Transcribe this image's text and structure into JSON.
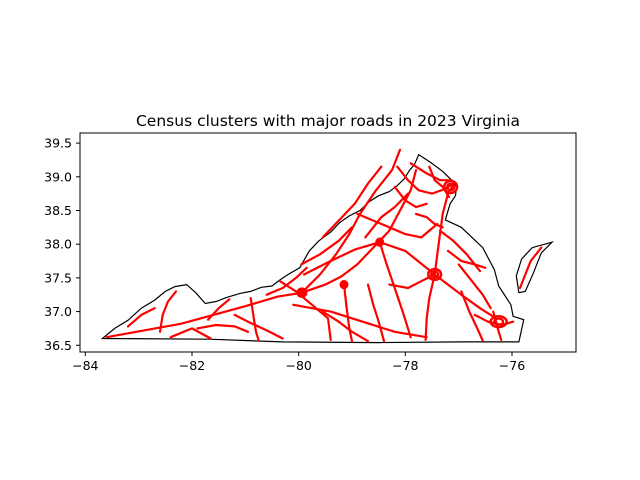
{
  "title": "Census clusters with major roads in 2023 Virginia",
  "colors": {
    "roads": "#ff0000",
    "boundary": "#000000",
    "background": "#ffffff"
  },
  "chart_data": {
    "type": "map",
    "title": "Census clusters with major roads in 2023 Virginia",
    "xlim": [
      -84.1,
      -74.8
    ],
    "ylim": [
      36.4,
      39.65
    ],
    "x_ticks": [
      -84,
      -82,
      -80,
      -78,
      -76
    ],
    "x_tick_labels": [
      "−84",
      "−82",
      "−80",
      "−78",
      "−76"
    ],
    "y_ticks": [
      36.5,
      37.0,
      37.5,
      38.0,
      38.5,
      39.0,
      39.5
    ],
    "y_tick_labels": [
      "36.5",
      "37.0",
      "37.5",
      "38.0",
      "38.5",
      "39.0",
      "39.5"
    ],
    "grid": false,
    "layers": [
      {
        "name": "state boundary",
        "color": "#000000"
      },
      {
        "name": "major roads",
        "color": "#ff0000"
      }
    ],
    "boundary": [
      [
        -83.68,
        36.6
      ],
      [
        -81.68,
        36.59
      ],
      [
        -80.3,
        36.55
      ],
      [
        -78.5,
        36.54
      ],
      [
        -76.92,
        36.55
      ],
      [
        -75.87,
        36.55
      ],
      [
        -75.78,
        36.88
      ],
      [
        -75.98,
        36.93
      ],
      [
        -76.02,
        37.1
      ],
      [
        -76.25,
        37.38
      ],
      [
        -76.33,
        37.62
      ],
      [
        -76.55,
        37.95
      ],
      [
        -76.95,
        38.25
      ],
      [
        -77.25,
        38.36
      ],
      [
        -77.16,
        38.6
      ],
      [
        -77.06,
        38.72
      ],
      [
        -77.04,
        38.85
      ],
      [
        -77.12,
        38.94
      ],
      [
        -77.3,
        39.08
      ],
      [
        -77.52,
        39.21
      ],
      [
        -77.75,
        39.33
      ],
      [
        -77.83,
        39.18
      ],
      [
        -77.92,
        39.1
      ],
      [
        -78.02,
        38.97
      ],
      [
        -78.15,
        38.87
      ],
      [
        -78.3,
        38.78
      ],
      [
        -78.5,
        38.72
      ],
      [
        -78.68,
        38.63
      ],
      [
        -78.85,
        38.5
      ],
      [
        -79.05,
        38.42
      ],
      [
        -79.23,
        38.32
      ],
      [
        -79.4,
        38.18
      ],
      [
        -79.62,
        38.05
      ],
      [
        -79.8,
        37.9
      ],
      [
        -79.98,
        37.65
      ],
      [
        -80.2,
        37.55
      ],
      [
        -80.35,
        37.47
      ],
      [
        -80.5,
        37.38
      ],
      [
        -80.7,
        37.36
      ],
      [
        -80.9,
        37.3
      ],
      [
        -81.1,
        37.27
      ],
      [
        -81.35,
        37.21
      ],
      [
        -81.55,
        37.15
      ],
      [
        -81.75,
        37.12
      ],
      [
        -81.93,
        37.28
      ],
      [
        -82.1,
        37.4
      ],
      [
        -82.32,
        37.37
      ],
      [
        -82.5,
        37.3
      ],
      [
        -82.7,
        37.17
      ],
      [
        -82.95,
        37.05
      ],
      [
        -83.2,
        36.87
      ],
      [
        -83.45,
        36.75
      ],
      [
        -83.68,
        36.6
      ]
    ],
    "peninsula": [
      [
        -75.87,
        37.28
      ],
      [
        -75.92,
        37.53
      ],
      [
        -75.82,
        37.78
      ],
      [
        -75.62,
        37.95
      ],
      [
        -75.25,
        38.03
      ],
      [
        -75.45,
        37.87
      ],
      [
        -75.6,
        37.57
      ],
      [
        -75.75,
        37.3
      ],
      [
        -75.87,
        37.28
      ]
    ],
    "road_segments": [
      [
        [
          -83.6,
          36.62
        ],
        [
          -82.9,
          36.72
        ],
        [
          -82.2,
          36.82
        ],
        [
          -81.6,
          36.95
        ],
        [
          -81.0,
          37.08
        ],
        [
          -80.4,
          37.22
        ]
      ],
      [
        [
          -80.4,
          37.22
        ],
        [
          -79.94,
          37.28
        ],
        [
          -79.5,
          37.4
        ],
        [
          -79.2,
          37.52
        ],
        [
          -78.9,
          37.7
        ],
        [
          -78.6,
          37.95
        ],
        [
          -78.3,
          38.2
        ],
        [
          -78.1,
          38.5
        ],
        [
          -77.9,
          38.8
        ],
        [
          -77.8,
          39.1
        ]
      ],
      [
        [
          -79.94,
          37.28
        ],
        [
          -79.6,
          37.55
        ],
        [
          -79.3,
          37.85
        ],
        [
          -79.05,
          38.15
        ],
        [
          -78.85,
          38.45
        ],
        [
          -78.55,
          38.8
        ],
        [
          -78.25,
          39.1
        ],
        [
          -78.1,
          39.4
        ]
      ],
      [
        [
          -80.1,
          37.1
        ],
        [
          -79.4,
          37.0
        ],
        [
          -78.8,
          36.85
        ],
        [
          -78.2,
          36.7
        ],
        [
          -77.6,
          36.62
        ]
      ],
      [
        [
          -79.9,
          37.55
        ],
        [
          -79.4,
          37.75
        ],
        [
          -78.95,
          37.92
        ],
        [
          -78.48,
          38.03
        ],
        [
          -78.0,
          37.9
        ],
        [
          -77.45,
          37.55
        ]
      ],
      [
        [
          -77.45,
          37.55
        ],
        [
          -77.2,
          37.4
        ],
        [
          -76.9,
          37.22
        ],
        [
          -76.6,
          37.05
        ],
        [
          -76.3,
          36.9
        ]
      ],
      [
        [
          -77.45,
          37.55
        ],
        [
          -77.4,
          37.85
        ],
        [
          -77.35,
          38.15
        ],
        [
          -77.3,
          38.45
        ],
        [
          -77.2,
          38.75
        ],
        [
          -77.1,
          38.88
        ]
      ],
      [
        [
          -77.45,
          37.55
        ],
        [
          -77.55,
          37.2
        ],
        [
          -77.6,
          36.9
        ],
        [
          -77.62,
          36.58
        ]
      ],
      [
        [
          -78.48,
          38.03
        ],
        [
          -78.35,
          37.7
        ],
        [
          -78.2,
          37.35
        ],
        [
          -78.05,
          37.0
        ],
        [
          -77.9,
          36.62
        ]
      ],
      [
        [
          -79.15,
          37.4
        ],
        [
          -79.1,
          37.05
        ],
        [
          -79.05,
          36.75
        ],
        [
          -79.0,
          36.56
        ]
      ],
      [
        [
          -80.9,
          37.2
        ],
        [
          -80.85,
          36.95
        ],
        [
          -80.8,
          36.7
        ],
        [
          -80.75,
          36.57
        ]
      ],
      [
        [
          -81.7,
          36.88
        ],
        [
          -81.5,
          37.05
        ],
        [
          -81.3,
          37.18
        ]
      ],
      [
        [
          -82.6,
          36.7
        ],
        [
          -82.55,
          36.95
        ],
        [
          -82.45,
          37.15
        ],
        [
          -82.3,
          37.3
        ]
      ],
      [
        [
          -83.2,
          36.78
        ],
        [
          -82.95,
          36.95
        ],
        [
          -82.7,
          37.05
        ]
      ],
      [
        [
          -82.4,
          36.62
        ],
        [
          -82.0,
          36.75
        ],
        [
          -81.65,
          36.6
        ]
      ],
      [
        [
          -81.2,
          36.95
        ],
        [
          -80.95,
          36.85
        ],
        [
          -80.6,
          36.72
        ],
        [
          -80.3,
          36.6
        ]
      ],
      [
        [
          -80.35,
          37.45
        ],
        [
          -80.05,
          37.3
        ],
        [
          -79.75,
          37.1
        ],
        [
          -79.45,
          36.9
        ],
        [
          -79.4,
          36.58
        ]
      ],
      [
        [
          -79.95,
          37.7
        ],
        [
          -79.6,
          37.85
        ],
        [
          -79.25,
          38.05
        ],
        [
          -79.0,
          38.25
        ]
      ],
      [
        [
          -79.55,
          38.1
        ],
        [
          -79.25,
          38.35
        ],
        [
          -78.95,
          38.6
        ],
        [
          -78.7,
          38.9
        ],
        [
          -78.45,
          39.15
        ]
      ],
      [
        [
          -78.9,
          38.45
        ],
        [
          -78.6,
          38.35
        ],
        [
          -78.3,
          38.25
        ],
        [
          -78.0,
          38.15
        ],
        [
          -77.7,
          38.1
        ],
        [
          -77.4,
          38.3
        ]
      ],
      [
        [
          -78.15,
          39.15
        ],
        [
          -77.95,
          38.95
        ],
        [
          -77.75,
          38.8
        ],
        [
          -77.5,
          38.75
        ],
        [
          -77.25,
          38.82
        ],
        [
          -77.1,
          38.9
        ]
      ],
      [
        [
          -77.55,
          39.15
        ],
        [
          -77.45,
          38.95
        ],
        [
          -77.3,
          38.85
        ],
        [
          -77.18,
          38.7
        ]
      ],
      [
        [
          -77.9,
          39.2
        ],
        [
          -77.6,
          39.05
        ],
        [
          -77.35,
          38.95
        ],
        [
          -77.15,
          38.95
        ]
      ],
      [
        [
          -77.8,
          38.45
        ],
        [
          -77.6,
          38.4
        ],
        [
          -77.45,
          38.3
        ],
        [
          -77.3,
          38.25
        ]
      ],
      [
        [
          -77.35,
          38.2
        ],
        [
          -77.1,
          38.05
        ],
        [
          -76.85,
          37.85
        ],
        [
          -76.6,
          37.6
        ]
      ],
      [
        [
          -77.0,
          37.7
        ],
        [
          -76.75,
          37.45
        ],
        [
          -76.55,
          37.25
        ],
        [
          -76.4,
          37.05
        ]
      ],
      [
        [
          -76.95,
          37.3
        ],
        [
          -76.8,
          37.0
        ],
        [
          -76.65,
          36.75
        ],
        [
          -76.55,
          36.57
        ]
      ],
      [
        [
          -76.7,
          36.95
        ],
        [
          -76.45,
          36.85
        ],
        [
          -76.2,
          36.8
        ],
        [
          -75.98,
          36.85
        ]
      ],
      [
        [
          -76.35,
          37.0
        ],
        [
          -76.3,
          36.85
        ],
        [
          -76.25,
          36.7
        ],
        [
          -76.2,
          36.58
        ]
      ],
      [
        [
          -75.85,
          37.35
        ],
        [
          -75.75,
          37.55
        ],
        [
          -75.65,
          37.75
        ],
        [
          -75.45,
          37.95
        ]
      ],
      [
        [
          -78.3,
          37.4
        ],
        [
          -77.95,
          37.35
        ],
        [
          -77.7,
          37.45
        ],
        [
          -77.45,
          37.55
        ]
      ],
      [
        [
          -78.7,
          37.4
        ],
        [
          -78.6,
          37.1
        ],
        [
          -78.5,
          36.85
        ],
        [
          -78.4,
          36.56
        ]
      ],
      [
        [
          -79.55,
          37.0
        ],
        [
          -79.25,
          36.85
        ],
        [
          -79.0,
          36.7
        ],
        [
          -78.7,
          36.56
        ]
      ],
      [
        [
          -78.2,
          38.85
        ],
        [
          -78.0,
          38.65
        ],
        [
          -77.8,
          38.55
        ],
        [
          -77.6,
          38.6
        ]
      ],
      [
        [
          -78.75,
          38.1
        ],
        [
          -78.45,
          38.4
        ],
        [
          -78.2,
          38.55
        ],
        [
          -77.95,
          38.75
        ]
      ],
      [
        [
          -80.6,
          37.25
        ],
        [
          -80.3,
          37.35
        ],
        [
          -80.05,
          37.5
        ],
        [
          -79.85,
          37.65
        ]
      ],
      [
        [
          -81.9,
          36.75
        ],
        [
          -81.55,
          36.8
        ],
        [
          -81.2,
          36.78
        ],
        [
          -80.95,
          36.7
        ]
      ],
      [
        [
          -77.2,
          37.9
        ],
        [
          -76.95,
          37.75
        ],
        [
          -76.7,
          37.7
        ],
        [
          -76.5,
          37.65
        ]
      ]
    ],
    "road_clusters": [
      {
        "center": [
          -77.45,
          37.55
        ],
        "radius": [
          0.12,
          0.08
        ]
      },
      {
        "center": [
          -77.15,
          38.85
        ],
        "radius": [
          0.12,
          0.09
        ]
      },
      {
        "center": [
          -76.25,
          36.85
        ],
        "radius": [
          0.15,
          0.08
        ]
      },
      {
        "center": [
          -79.94,
          37.28
        ],
        "radius": [
          0.08,
          0.06
        ]
      },
      {
        "center": [
          -78.48,
          38.03
        ],
        "radius": [
          0.06,
          0.05
        ]
      },
      {
        "center": [
          -79.15,
          37.4
        ],
        "radius": [
          0.06,
          0.05
        ]
      }
    ]
  }
}
